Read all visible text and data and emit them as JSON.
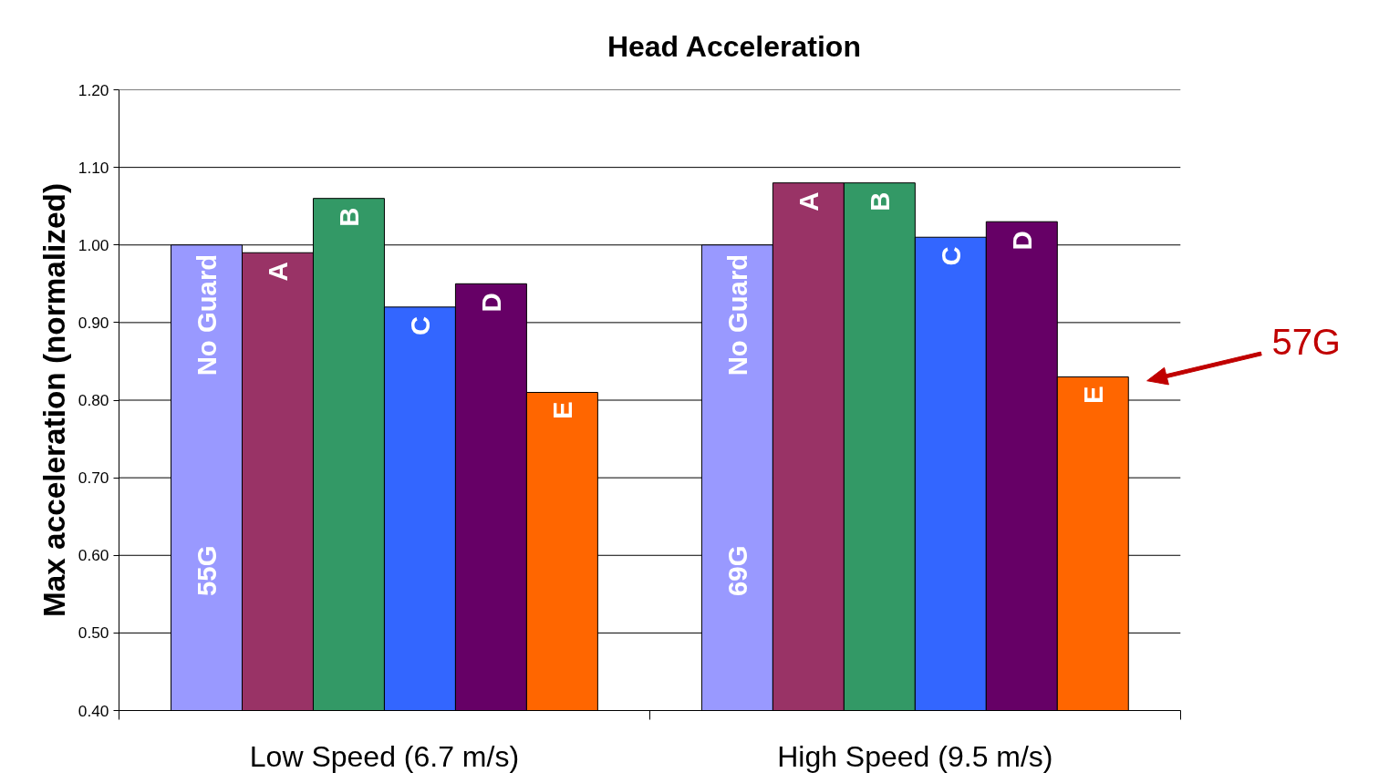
{
  "chart_data": {
    "type": "bar",
    "title": "Head Acceleration",
    "ylabel": "Max acceleration (normalized)",
    "categories": [
      "Low Speed (6.7 m/s)",
      "High Speed (9.5 m/s)"
    ],
    "series": [
      {
        "name": "No Guard",
        "color": "#9999ff",
        "values": [
          1.0,
          1.0
        ]
      },
      {
        "name": "A",
        "color": "#993366",
        "values": [
          0.99,
          1.08
        ]
      },
      {
        "name": "B",
        "color": "#339966",
        "values": [
          1.06,
          1.08
        ]
      },
      {
        "name": "C",
        "color": "#3366ff",
        "values": [
          0.92,
          1.01
        ]
      },
      {
        "name": "D",
        "color": "#660066",
        "values": [
          0.95,
          1.03
        ]
      },
      {
        "name": "E",
        "color": "#ff6600",
        "values": [
          0.81,
          0.83
        ]
      }
    ],
    "ylim": [
      0.4,
      1.2
    ],
    "yticks": [
      {
        "value": 0.4,
        "label": "0.40"
      },
      {
        "value": 0.5,
        "label": "0.50"
      },
      {
        "value": 0.6,
        "label": "0.60"
      },
      {
        "value": 0.7,
        "label": "0.70"
      },
      {
        "value": 0.8,
        "label": "0.80"
      },
      {
        "value": 0.9,
        "label": "0.90"
      },
      {
        "value": 1.0,
        "label": "1.00"
      },
      {
        "value": 1.1,
        "label": "1.10"
      },
      {
        "value": 1.2,
        "label": "1.20"
      }
    ],
    "grid": "y",
    "legend": false,
    "annotations": [
      "55G",
      "69G",
      "57G"
    ]
  }
}
